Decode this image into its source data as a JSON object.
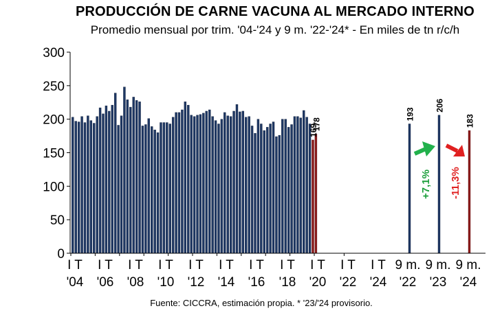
{
  "title": "PRODUCCIÓN DE CARNE VACUNA AL MERCADO INTERNO",
  "subtitle": "Promedio mensual por trim. '04-'24 y 9 m. '22-'24* - En miles de tn r/c/h",
  "source": "Fuente: CICCRA, estimación propia. * '23/'24 provisorio.",
  "colors": {
    "historic": "#1f3864",
    "recent": "#8b1a1a",
    "up": "#22b14c",
    "down": "#e02020",
    "pct_up": "#1a9e3a",
    "pct_down": "#e02020"
  },
  "chart_data": {
    "type": "bar",
    "ylim": [
      0,
      300
    ],
    "yticks": [
      0,
      50,
      100,
      150,
      200,
      250,
      300
    ],
    "series": [
      {
        "name": "Promedio mensual por trimestre",
        "values": [
          203,
          197,
          196,
          204,
          195,
          205,
          198,
          194,
          204,
          217,
          208,
          220,
          212,
          221,
          239,
          191,
          205,
          248,
          229,
          218,
          233,
          228,
          226,
          190,
          192,
          201,
          189,
          184,
          180,
          195,
          195,
          195,
          193,
          203,
          210,
          210,
          214,
          226,
          221,
          206,
          204,
          206,
          207,
          209,
          212,
          214,
          204,
          198,
          193,
          200,
          210,
          205,
          204,
          212,
          222,
          211,
          212,
          203,
          204,
          190,
          179,
          200,
          193,
          183,
          188,
          193,
          196,
          174,
          176,
          200,
          200,
          188,
          192,
          204,
          204,
          202,
          213,
          203,
          193,
          169,
          178
        ]
      },
      {
        "name": "9 meses",
        "categories": [
          "9 m. '22",
          "9 m. '23",
          "9 m. '24"
        ],
        "values": [
          193,
          206,
          183
        ]
      }
    ],
    "bar_labels": [
      {
        "label": "169",
        "value": 169
      },
      {
        "label": "178",
        "value": 178
      },
      {
        "label": "193",
        "value": 193
      },
      {
        "label": "206",
        "value": 206
      },
      {
        "label": "183",
        "value": 183
      }
    ],
    "x_labels": [
      {
        "top": "I T",
        "bottom": "'04"
      },
      {
        "top": "I T",
        "bottom": "'06"
      },
      {
        "top": "I T",
        "bottom": "'08"
      },
      {
        "top": "I T",
        "bottom": "'10"
      },
      {
        "top": "I T",
        "bottom": "'12"
      },
      {
        "top": "I T",
        "bottom": "'14"
      },
      {
        "top": "I T",
        "bottom": "'16"
      },
      {
        "top": "I T",
        "bottom": "'18"
      },
      {
        "top": "I T",
        "bottom": "'20"
      },
      {
        "top": "I T",
        "bottom": "'22"
      },
      {
        "top": "I T",
        "bottom": "'24"
      },
      {
        "top": "9 m.",
        "bottom": "'22"
      },
      {
        "top": "9 m.",
        "bottom": "'23"
      },
      {
        "top": "9 m.",
        "bottom": "'24"
      }
    ],
    "annotations": [
      {
        "text": "+7,1%",
        "direction": "up"
      },
      {
        "text": "-11,3%",
        "direction": "down"
      }
    ]
  }
}
